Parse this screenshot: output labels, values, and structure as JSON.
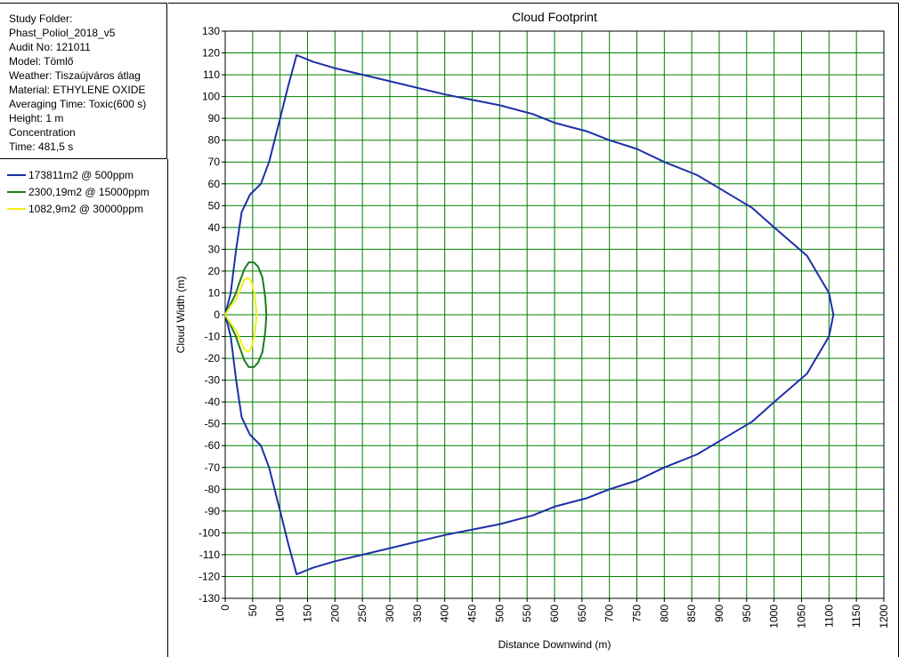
{
  "info": {
    "lines": [
      "Study Folder:",
      "Phast_Poliol_2018_v5",
      "Audit No: 121011",
      "Model: Tömlő",
      "Weather: Tiszaújváros átlag",
      "Material: ETHYLENE OXIDE",
      "Averaging Time: Toxic(600 s)",
      "Height: 1 m",
      "Concentration",
      "Time: 481,5 s"
    ]
  },
  "legend": [
    {
      "label": "173811m2 @ 500ppm",
      "color": "#1f2fa8"
    },
    {
      "label": "2300,19m2 @ 15000ppm",
      "color": "#1e7d1e"
    },
    {
      "label": "1082,9m2 @ 30000ppm",
      "color": "#f2f21a"
    }
  ],
  "chart_data": {
    "type": "line",
    "title": "Cloud Footprint",
    "xlabel": "Distance Downwind (m)",
    "ylabel": "Cloud Width (m)",
    "xlim": [
      0,
      1200
    ],
    "ylim": [
      -130,
      130
    ],
    "xticks": [
      0,
      50,
      100,
      150,
      200,
      250,
      300,
      350,
      400,
      450,
      500,
      550,
      600,
      650,
      700,
      750,
      800,
      850,
      900,
      950,
      1000,
      1050,
      1100,
      1150,
      1200
    ],
    "yticks": [
      130,
      120,
      110,
      100,
      90,
      80,
      70,
      60,
      50,
      40,
      30,
      20,
      10,
      0,
      -10,
      -20,
      -30,
      -40,
      -50,
      -60,
      -70,
      -80,
      -90,
      -100,
      -110,
      -120,
      -130
    ],
    "grid": true,
    "grid_color": "#008000",
    "series": [
      {
        "name": "173811m2 @ 500ppm",
        "color": "#1f2fa8",
        "points": [
          [
            0,
            0
          ],
          [
            10,
            10
          ],
          [
            20,
            30
          ],
          [
            30,
            47
          ],
          [
            45,
            55
          ],
          [
            65,
            60
          ],
          [
            80,
            70
          ],
          [
            100,
            90
          ],
          [
            115,
            105
          ],
          [
            130,
            119
          ],
          [
            160,
            116
          ],
          [
            200,
            113
          ],
          [
            300,
            107
          ],
          [
            400,
            101
          ],
          [
            460,
            98
          ],
          [
            500,
            96
          ],
          [
            560,
            92
          ],
          [
            600,
            88
          ],
          [
            660,
            84
          ],
          [
            700,
            80
          ],
          [
            750,
            76
          ],
          [
            800,
            70
          ],
          [
            860,
            64
          ],
          [
            900,
            58
          ],
          [
            960,
            49
          ],
          [
            1000,
            40
          ],
          [
            1060,
            27
          ],
          [
            1100,
            10
          ],
          [
            1108,
            0
          ],
          [
            1100,
            -10
          ],
          [
            1060,
            -27
          ],
          [
            1000,
            -40
          ],
          [
            960,
            -49
          ],
          [
            900,
            -58
          ],
          [
            860,
            -64
          ],
          [
            800,
            -70
          ],
          [
            750,
            -76
          ],
          [
            700,
            -80
          ],
          [
            660,
            -84
          ],
          [
            600,
            -88
          ],
          [
            560,
            -92
          ],
          [
            500,
            -96
          ],
          [
            460,
            -98
          ],
          [
            400,
            -101
          ],
          [
            300,
            -107
          ],
          [
            200,
            -113
          ],
          [
            160,
            -116
          ],
          [
            130,
            -119
          ],
          [
            115,
            -105
          ],
          [
            100,
            -90
          ],
          [
            80,
            -70
          ],
          [
            65,
            -60
          ],
          [
            45,
            -55
          ],
          [
            30,
            -47
          ],
          [
            20,
            -30
          ],
          [
            10,
            -10
          ],
          [
            0,
            0
          ]
        ]
      },
      {
        "name": "2300,19m2 @ 15000ppm",
        "color": "#1e7d1e",
        "points": [
          [
            0,
            0
          ],
          [
            8,
            4
          ],
          [
            18,
            9
          ],
          [
            25,
            14
          ],
          [
            35,
            21
          ],
          [
            43,
            24
          ],
          [
            52,
            24
          ],
          [
            60,
            22
          ],
          [
            68,
            17
          ],
          [
            73,
            8
          ],
          [
            75,
            0
          ],
          [
            73,
            -8
          ],
          [
            68,
            -17
          ],
          [
            60,
            -22
          ],
          [
            52,
            -24
          ],
          [
            43,
            -24
          ],
          [
            35,
            -21
          ],
          [
            25,
            -14
          ],
          [
            18,
            -9
          ],
          [
            8,
            -4
          ],
          [
            0,
            0
          ]
        ]
      },
      {
        "name": "1082,9m2 @ 30000ppm",
        "color": "#f2f21a",
        "points": [
          [
            0,
            0
          ],
          [
            10,
            4
          ],
          [
            20,
            7
          ],
          [
            28,
            12
          ],
          [
            35,
            16
          ],
          [
            42,
            17
          ],
          [
            48,
            15
          ],
          [
            53,
            10
          ],
          [
            56,
            4
          ],
          [
            57,
            0
          ],
          [
            56,
            -4
          ],
          [
            53,
            -10
          ],
          [
            48,
            -15
          ],
          [
            42,
            -17
          ],
          [
            35,
            -16
          ],
          [
            28,
            -12
          ],
          [
            20,
            -7
          ],
          [
            10,
            -4
          ],
          [
            0,
            0
          ]
        ]
      }
    ]
  }
}
